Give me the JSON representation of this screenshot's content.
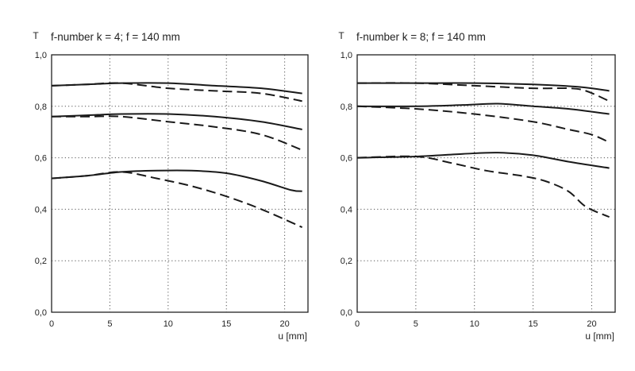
{
  "chart_data": [
    {
      "type": "line",
      "title": "f-number k = 4; f = 140 mm",
      "ylabel": "T",
      "xlabel": "u [mm]",
      "xlim": [
        0,
        22
      ],
      "ylim": [
        0,
        1
      ],
      "x_ticks": [
        0,
        5,
        10,
        15,
        20
      ],
      "x_tick_labels": [
        "0",
        "5",
        "10",
        "15",
        "20"
      ],
      "y_ticks": [
        0,
        0.2,
        0.4,
        0.6,
        0.8,
        1.0
      ],
      "y_tick_labels": [
        "0,0",
        "0,2",
        "0,4",
        "0,6",
        "0,8",
        "1,0"
      ],
      "grid": true,
      "series": [
        {
          "style": "solid",
          "x": [
            0,
            3,
            6,
            10,
            14,
            18,
            21.5
          ],
          "values": [
            0.88,
            0.885,
            0.89,
            0.89,
            0.88,
            0.87,
            0.85
          ]
        },
        {
          "style": "dashed",
          "x": [
            0,
            3,
            6,
            10,
            14,
            18,
            21.5
          ],
          "values": [
            0.88,
            0.885,
            0.89,
            0.87,
            0.86,
            0.85,
            0.82
          ]
        },
        {
          "style": "solid",
          "x": [
            0,
            3,
            6,
            10,
            14,
            18,
            21.5
          ],
          "values": [
            0.76,
            0.765,
            0.77,
            0.77,
            0.76,
            0.74,
            0.71
          ]
        },
        {
          "style": "dashed",
          "x": [
            0,
            3,
            6,
            10,
            14,
            18,
            21.5
          ],
          "values": [
            0.76,
            0.76,
            0.76,
            0.74,
            0.72,
            0.69,
            0.63
          ]
        },
        {
          "style": "solid",
          "x": [
            0,
            3,
            6,
            9,
            12,
            15,
            18,
            20.5,
            21.5
          ],
          "values": [
            0.52,
            0.53,
            0.545,
            0.55,
            0.55,
            0.54,
            0.51,
            0.475,
            0.47
          ]
        },
        {
          "style": "dashed",
          "x": [
            0,
            3,
            6,
            9,
            12,
            15,
            18,
            21.5
          ],
          "values": [
            0.52,
            0.53,
            0.545,
            0.52,
            0.49,
            0.45,
            0.4,
            0.33
          ]
        }
      ]
    },
    {
      "type": "line",
      "title": "f-number k = 8; f = 140 mm",
      "ylabel": "T",
      "xlabel": "u [mm]",
      "xlim": [
        0,
        22
      ],
      "ylim": [
        0,
        1
      ],
      "x_ticks": [
        0,
        5,
        10,
        15,
        20
      ],
      "x_tick_labels": [
        "0",
        "5",
        "10",
        "15",
        "20"
      ],
      "y_ticks": [
        0,
        0.2,
        0.4,
        0.6,
        0.8,
        1.0
      ],
      "y_tick_labels": [
        "0,0",
        "0,2",
        "0,4",
        "0,6",
        "0,8",
        "1,0"
      ],
      "grid": true,
      "series": [
        {
          "style": "solid",
          "x": [
            0,
            5,
            10,
            15,
            19,
            21.5
          ],
          "values": [
            0.89,
            0.89,
            0.89,
            0.885,
            0.875,
            0.86
          ]
        },
        {
          "style": "dashed",
          "x": [
            0,
            5,
            10,
            15,
            18,
            19.5,
            21.5
          ],
          "values": [
            0.89,
            0.89,
            0.88,
            0.87,
            0.87,
            0.86,
            0.82
          ]
        },
        {
          "style": "solid",
          "x": [
            0,
            5,
            9,
            12,
            15,
            18,
            21.5
          ],
          "values": [
            0.8,
            0.8,
            0.805,
            0.81,
            0.8,
            0.79,
            0.77
          ]
        },
        {
          "style": "dashed",
          "x": [
            0,
            5,
            10,
            15,
            18,
            20,
            21.5
          ],
          "values": [
            0.8,
            0.79,
            0.77,
            0.74,
            0.71,
            0.69,
            0.66
          ]
        },
        {
          "style": "solid",
          "x": [
            0,
            5,
            9,
            12,
            15,
            18,
            21.5
          ],
          "values": [
            0.6,
            0.605,
            0.615,
            0.62,
            0.61,
            0.585,
            0.56
          ]
        },
        {
          "style": "dashed",
          "x": [
            0,
            5,
            8,
            11,
            14,
            16,
            18,
            19.5,
            21.5
          ],
          "values": [
            0.6,
            0.605,
            0.58,
            0.55,
            0.53,
            0.51,
            0.47,
            0.41,
            0.37
          ]
        }
      ]
    }
  ]
}
